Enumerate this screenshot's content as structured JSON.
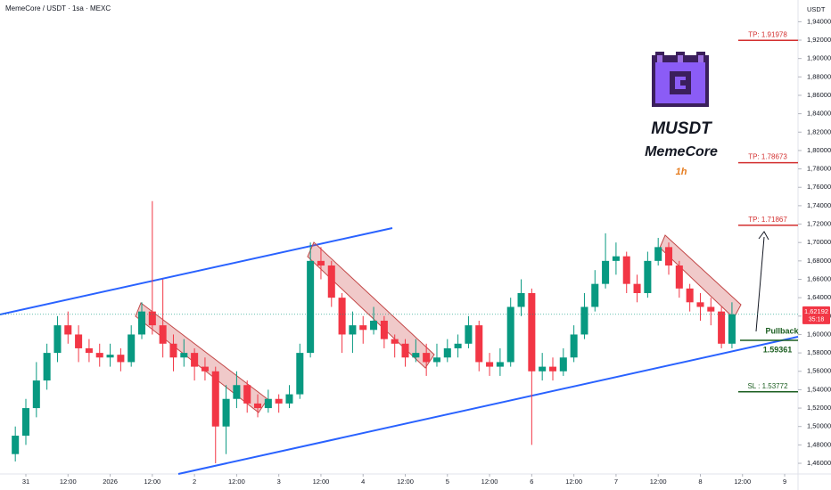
{
  "chart_data": {
    "type": "candlestick",
    "title": "MemeCore / USDT · 1sa · MEXC",
    "y_unit": "USDT",
    "x": [
      -3,
      0,
      3,
      6,
      9,
      12,
      15,
      18,
      21,
      24,
      27,
      30,
      33,
      36,
      39,
      42,
      45,
      48,
      51,
      54,
      57,
      60,
      63,
      66,
      69,
      72,
      75,
      78,
      81,
      84,
      87,
      90,
      93,
      96,
      99,
      102,
      105,
      108,
      111,
      114,
      117,
      120,
      123,
      126,
      129,
      132,
      135,
      138,
      141,
      144,
      147,
      150,
      153,
      156,
      159,
      162,
      165,
      168,
      171,
      174,
      177,
      180,
      183,
      186,
      189,
      192,
      195,
      198,
      201
    ],
    "open": [
      1.47,
      1.49,
      1.52,
      1.55,
      1.58,
      1.61,
      1.6,
      1.585,
      1.58,
      1.575,
      1.578,
      1.57,
      1.6,
      1.625,
      1.61,
      1.59,
      1.575,
      1.58,
      1.565,
      1.56,
      1.5,
      1.53,
      1.545,
      1.525,
      1.52,
      1.53,
      1.525,
      1.535,
      1.58,
      1.68,
      1.675,
      1.64,
      1.6,
      1.61,
      1.605,
      1.615,
      1.595,
      1.59,
      1.575,
      1.58,
      1.57,
      1.575,
      1.585,
      1.59,
      1.61,
      1.57,
      1.565,
      1.57,
      1.63,
      1.645,
      1.56,
      1.565,
      1.56,
      1.575,
      1.6,
      1.63,
      1.655,
      1.68,
      1.685,
      1.655,
      1.645,
      1.68,
      1.695,
      1.675,
      1.65,
      1.635,
      1.63,
      1.625,
      1.59
    ],
    "high": [
      1.5,
      1.53,
      1.57,
      1.59,
      1.62,
      1.625,
      1.61,
      1.595,
      1.59,
      1.59,
      1.585,
      1.61,
      1.635,
      1.745,
      1.66,
      1.6,
      1.595,
      1.585,
      1.575,
      1.565,
      1.545,
      1.56,
      1.55,
      1.535,
      1.54,
      1.535,
      1.545,
      1.59,
      1.7,
      1.695,
      1.68,
      1.645,
      1.625,
      1.62,
      1.63,
      1.62,
      1.6,
      1.595,
      1.595,
      1.59,
      1.59,
      1.595,
      1.6,
      1.62,
      1.615,
      1.58,
      1.585,
      1.64,
      1.66,
      1.65,
      1.58,
      1.575,
      1.585,
      1.61,
      1.645,
      1.67,
      1.71,
      1.7,
      1.69,
      1.665,
      1.69,
      1.705,
      1.7,
      1.68,
      1.655,
      1.645,
      1.64,
      1.63,
      1.635
    ],
    "low": [
      1.462,
      1.48,
      1.51,
      1.54,
      1.57,
      1.59,
      1.57,
      1.57,
      1.565,
      1.565,
      1.56,
      1.565,
      1.595,
      1.6,
      1.575,
      1.56,
      1.565,
      1.55,
      1.55,
      1.46,
      1.47,
      1.52,
      1.515,
      1.51,
      1.515,
      1.515,
      1.52,
      1.53,
      1.575,
      1.66,
      1.63,
      1.58,
      1.58,
      1.59,
      1.6,
      1.585,
      1.575,
      1.565,
      1.57,
      1.555,
      1.565,
      1.57,
      1.575,
      1.585,
      1.56,
      1.555,
      1.555,
      1.565,
      1.62,
      1.48,
      1.55,
      1.55,
      1.555,
      1.57,
      1.595,
      1.625,
      1.65,
      1.665,
      1.645,
      1.635,
      1.64,
      1.675,
      1.665,
      1.64,
      1.625,
      1.615,
      1.61,
      1.585,
      1.585
    ],
    "close": [
      1.49,
      1.52,
      1.55,
      1.58,
      1.61,
      1.6,
      1.585,
      1.58,
      1.575,
      1.578,
      1.57,
      1.6,
      1.625,
      1.61,
      1.59,
      1.575,
      1.58,
      1.565,
      1.56,
      1.5,
      1.53,
      1.545,
      1.525,
      1.52,
      1.53,
      1.525,
      1.535,
      1.58,
      1.68,
      1.675,
      1.64,
      1.6,
      1.61,
      1.605,
      1.615,
      1.595,
      1.59,
      1.575,
      1.58,
      1.57,
      1.575,
      1.585,
      1.59,
      1.61,
      1.57,
      1.565,
      1.57,
      1.63,
      1.645,
      1.56,
      1.565,
      1.56,
      1.575,
      1.6,
      1.63,
      1.655,
      1.68,
      1.685,
      1.655,
      1.645,
      1.68,
      1.695,
      1.675,
      1.65,
      1.635,
      1.63,
      1.625,
      1.59,
      1.62192
    ],
    "up_color": "#089981",
    "down_color": "#f23645",
    "xlim": [
      -7.36,
      219.8
    ],
    "xticks": [
      {
        "value": 0,
        "label": "31"
      },
      {
        "value": 12,
        "label": "12:00"
      },
      {
        "value": 24,
        "label": "2026"
      },
      {
        "value": 36,
        "label": "12:00"
      },
      {
        "value": 48,
        "label": "2"
      },
      {
        "value": 60,
        "label": "12:00"
      },
      {
        "value": 72,
        "label": "3"
      },
      {
        "value": 84,
        "label": "12:00"
      },
      {
        "value": 96,
        "label": "4"
      },
      {
        "value": 108,
        "label": "12:00"
      },
      {
        "value": 120,
        "label": "5"
      },
      {
        "value": 132,
        "label": "12:00"
      },
      {
        "value": 144,
        "label": "6"
      },
      {
        "value": 156,
        "label": "12:00"
      },
      {
        "value": 168,
        "label": "7"
      },
      {
        "value": 180,
        "label": "12:00"
      },
      {
        "value": 192,
        "label": "8"
      },
      {
        "value": 204,
        "label": "12:00"
      },
      {
        "value": 216,
        "label": "9"
      }
    ],
    "ylim": [
      1.4484,
      1.9636
    ],
    "yticks": [
      {
        "value": 1.46,
        "label": "1,46000"
      },
      {
        "value": 1.48,
        "label": "1,48000"
      },
      {
        "value": 1.5,
        "label": "1,50000"
      },
      {
        "value": 1.52,
        "label": "1,52000"
      },
      {
        "value": 1.54,
        "label": "1,54000"
      },
      {
        "value": 1.56,
        "label": "1,56000"
      },
      {
        "value": 1.58,
        "label": "1,58000"
      },
      {
        "value": 1.6,
        "label": "1,60000"
      },
      {
        "value": 1.62,
        "label": "1,62000"
      },
      {
        "value": 1.64,
        "label": "1,64000"
      },
      {
        "value": 1.66,
        "label": "1,66000"
      },
      {
        "value": 1.68,
        "label": "1,68000"
      },
      {
        "value": 1.7,
        "label": "1,70000"
      },
      {
        "value": 1.72,
        "label": "1,72000"
      },
      {
        "value": 1.74,
        "label": "1,74000"
      },
      {
        "value": 1.76,
        "label": "1,76000"
      },
      {
        "value": 1.78,
        "label": "1,78000"
      },
      {
        "value": 1.8,
        "label": "1,80000"
      },
      {
        "value": 1.82,
        "label": "1,82000"
      },
      {
        "value": 1.84,
        "label": "1,84000"
      },
      {
        "value": 1.86,
        "label": "1,86000"
      },
      {
        "value": 1.88,
        "label": "1,88000"
      },
      {
        "value": 1.9,
        "label": "1,90000"
      },
      {
        "value": 1.92,
        "label": "1,92000"
      },
      {
        "value": 1.94,
        "label": "1,94000"
      }
    ],
    "levels": [
      {
        "label": "TP: 1.91978",
        "value": 1.91978,
        "color": "#d32f2f"
      },
      {
        "label": "TP: 1.78673",
        "value": 1.78673,
        "color": "#d32f2f"
      },
      {
        "label": "TP: 1.71867",
        "value": 1.71867,
        "color": "#d32f2f"
      },
      {
        "label": "SL : 1.53772",
        "value": 1.53772,
        "color": "#1b5e20"
      }
    ],
    "pullback": {
      "name": "Pullback",
      "value": 1.59361,
      "color": "#1b5e20"
    },
    "last_price": {
      "value": 1.62192,
      "label": "1,62192"
    },
    "countdown": "35:18",
    "annotations": {
      "symbol": "MUSDT",
      "name": "MemeCore",
      "timeframe": "1h"
    }
  }
}
